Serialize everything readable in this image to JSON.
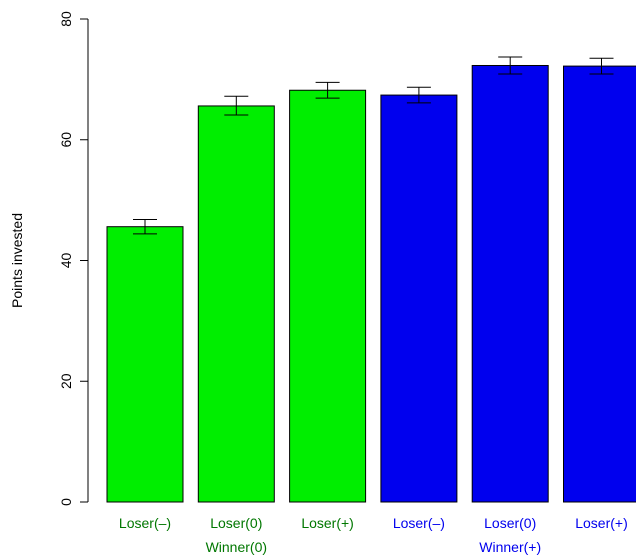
{
  "chart_data": {
    "type": "bar",
    "ylabel": "Points invested",
    "ylim": [
      0,
      80
    ],
    "yticks": [
      "0",
      "20",
      "40",
      "60",
      "80"
    ],
    "categories": [
      "Loser(–)",
      "Loser(0)",
      "Loser(+)",
      "Loser(–)",
      "Loser(0)",
      "Loser(+)"
    ],
    "groups": [
      {
        "label": "Winner(0)",
        "color": "#00ee00",
        "label_color": "#007700"
      },
      {
        "label": "Winner(+)",
        "color": "#0000ee",
        "label_color": "#0000ee"
      }
    ],
    "values": [
      45.6,
      65.6,
      68.2,
      67.4,
      72.3,
      72.2
    ],
    "error_low": [
      44.4,
      64.1,
      66.9,
      66.1,
      70.9,
      70.9
    ],
    "error_high": [
      46.8,
      67.2,
      69.5,
      68.7,
      73.7,
      73.5
    ],
    "bar_group": [
      0,
      0,
      0,
      1,
      1,
      1
    ],
    "group_label_under": [
      1,
      4
    ],
    "bar_outline_color": "#000000",
    "grid": false,
    "legend": "none"
  }
}
